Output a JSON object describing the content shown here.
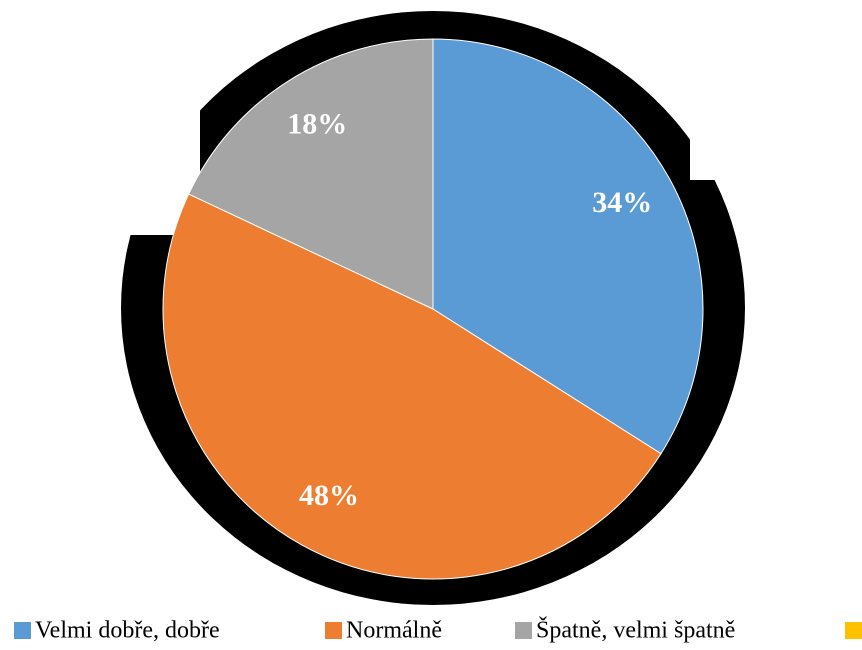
{
  "chart_data": {
    "type": "pie",
    "categories": [
      "Velmi dobře, dobře",
      "Normálně",
      "Špatně, velmi špatně"
    ],
    "values": [
      34,
      48,
      18
    ],
    "value_labels": [
      "34%",
      "48%",
      "18%"
    ],
    "colors": [
      "#5b9bd5",
      "#ed7d31",
      "#a5a5a5"
    ],
    "legend": "bottom"
  }
}
